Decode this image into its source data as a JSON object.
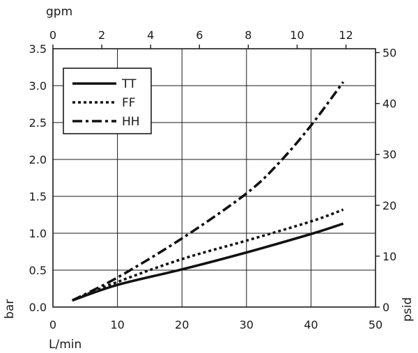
{
  "chart_data": {
    "type": "line",
    "x_bottom": {
      "label": "L/min",
      "range": [
        0,
        50
      ],
      "ticks": [
        0,
        10,
        20,
        30,
        40,
        50
      ]
    },
    "x_top": {
      "label": "gpm",
      "range": [
        0,
        13.21
      ],
      "ticks": [
        0,
        2,
        4,
        6,
        8,
        10,
        12
      ]
    },
    "y_left": {
      "label": "bar",
      "range": [
        0,
        3.5
      ],
      "ticks": [
        "0.0",
        "0.5",
        "1.0",
        "1.5",
        "2.0",
        "2.5",
        "3.0",
        "3.5"
      ]
    },
    "y_right": {
      "label": "psid",
      "range": [
        0,
        50.76
      ],
      "ticks": [
        0,
        10,
        20,
        30,
        40,
        50
      ]
    },
    "grid": true,
    "legend_position": "top-left",
    "series": [
      {
        "name": "TT",
        "style": "solid",
        "x": [
          3,
          10,
          20,
          30,
          40,
          45
        ],
        "y": [
          0.09,
          0.3,
          0.51,
          0.74,
          0.99,
          1.13
        ]
      },
      {
        "name": "FF",
        "style": "dotted",
        "x": [
          3,
          10,
          20,
          30,
          40,
          45
        ],
        "y": [
          0.09,
          0.34,
          0.65,
          0.9,
          1.16,
          1.32
        ]
      },
      {
        "name": "HH",
        "style": "dash-dot",
        "x": [
          3,
          10,
          20,
          30,
          35,
          40,
          45
        ],
        "y": [
          0.09,
          0.4,
          0.93,
          1.54,
          1.95,
          2.46,
          3.05
        ]
      }
    ]
  }
}
